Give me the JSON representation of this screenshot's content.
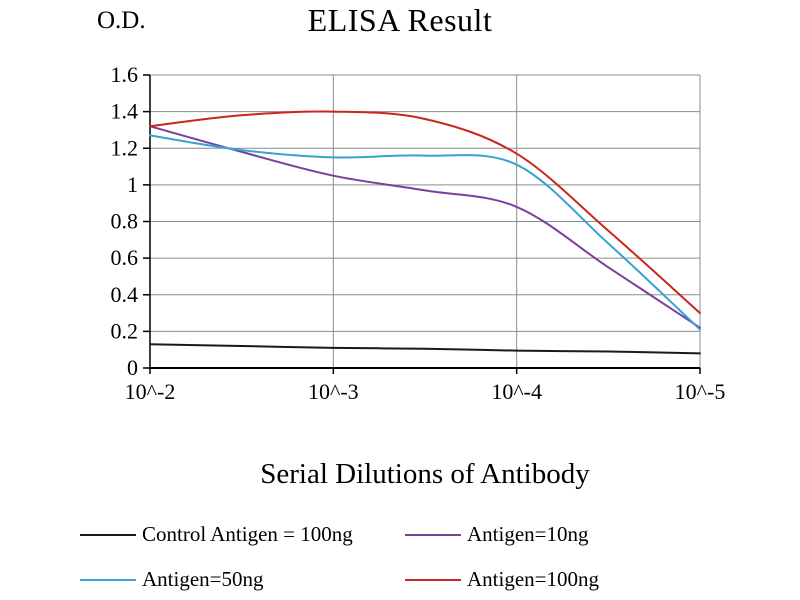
{
  "chart_data": {
    "type": "line",
    "title": "ELISA Result",
    "ylabel": "O.D.",
    "xlabel": "Serial Dilutions of Antibody",
    "x_tick_labels": [
      "10^-2",
      "10^-3",
      "10^-4",
      "10^-5"
    ],
    "x_tick_positions": [
      0,
      1,
      2,
      3
    ],
    "x_grid_at": [
      1,
      2,
      3
    ],
    "y_ticks": [
      0,
      0.2,
      0.4,
      0.6,
      0.8,
      1,
      1.2,
      1.4,
      1.6
    ],
    "y_tick_labels": [
      "0",
      "0.2",
      "0.4",
      "0.6",
      "0.8",
      "1",
      "1.2",
      "1.4",
      "1.6"
    ],
    "x_range": [
      0,
      3
    ],
    "y_range": [
      0,
      1.6
    ],
    "grid_on": true,
    "grid_color": "#8c8c8c",
    "axis_color": "#000000",
    "legend_position": "bottom",
    "x": [
      0,
      0.5,
      1,
      1.5,
      2,
      2.5,
      3
    ],
    "series": [
      {
        "name": "Control Antigen = 100ng",
        "color": "#1a1a1a",
        "values": [
          0.13,
          0.12,
          0.11,
          0.105,
          0.095,
          0.09,
          0.08
        ]
      },
      {
        "name": "Antigen=10ng",
        "color": "#7b3f9e",
        "values": [
          1.32,
          1.18,
          1.05,
          0.97,
          0.88,
          0.55,
          0.22
        ]
      },
      {
        "name": "Antigen=50ng",
        "color": "#36a2d4",
        "values": [
          1.27,
          1.19,
          1.15,
          1.16,
          1.11,
          0.68,
          0.21
        ]
      },
      {
        "name": "Antigen=100ng",
        "color": "#c9261d",
        "values": [
          1.32,
          1.38,
          1.4,
          1.36,
          1.17,
          0.75,
          0.3
        ]
      }
    ]
  }
}
